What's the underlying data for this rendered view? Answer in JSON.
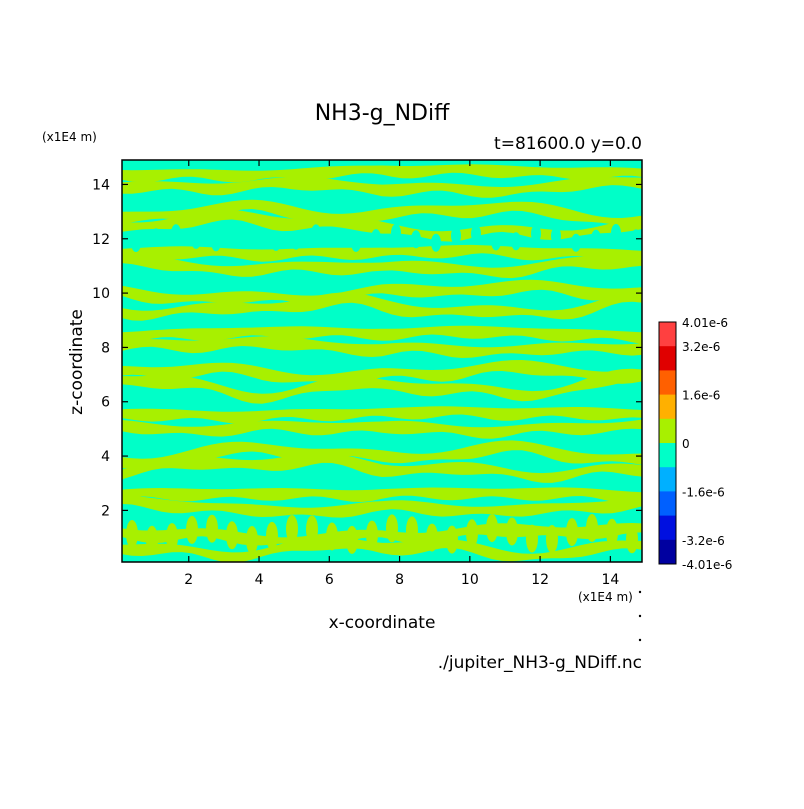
{
  "chart_data": {
    "type": "heatmap",
    "title": "NH3-g_NDiff",
    "subtitle": "t=81600.0 y=0.0",
    "xlabel": "x-coordinate",
    "ylabel": "z-coordinate",
    "x_unit": "(x1E4 m)",
    "y_unit": "(x1E4 m)",
    "xlim": [
      0.1,
      14.9
    ],
    "ylim": [
      0.1,
      14.9
    ],
    "x_ticks": [
      "2",
      "4",
      "6",
      "8",
      "10",
      "12",
      "14"
    ],
    "y_ticks": [
      "2",
      "4",
      "6",
      "8",
      "10",
      "12",
      "14"
    ],
    "colorbar_levels": [
      "4.01e-6",
      "3.2e-6",
      "1.6e-6",
      "0",
      "-1.6e-6",
      "-3.2e-6",
      "-4.01e-6"
    ],
    "colorbar_colors": [
      "#ff4040",
      "#e00000",
      "#ff6000",
      "#ffb000",
      "#a8f000",
      "#00ffc8",
      "#00b0ff",
      "#0060ff",
      "#0010e0",
      "#0000a0"
    ],
    "field_colors": {
      "positive": "#a8f000",
      "negative": "#00ffc8"
    },
    "note": "./jupiter_NH3-g_NDiff.nc"
  }
}
